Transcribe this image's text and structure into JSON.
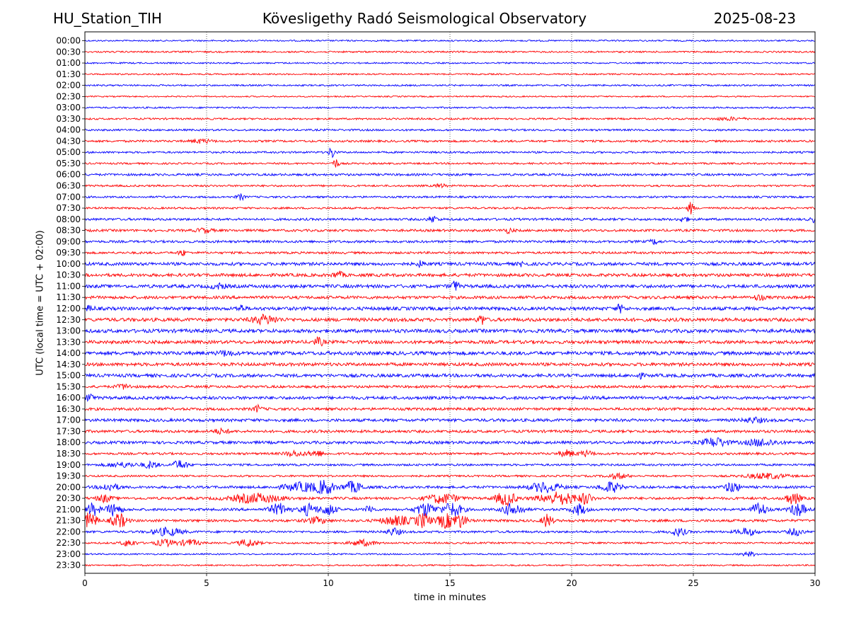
{
  "header": {
    "station": "HU_Station_TIH",
    "observatory": "Kövesligethy Radó Seismological Observatory",
    "date": "2025-08-23"
  },
  "chart_data": {
    "type": "line",
    "title": "Kövesligethy Radó Seismological Observatory",
    "xlabel": "time in minutes",
    "ylabel": "UTC (local time = UTC + 02:00)",
    "xlim": [
      0,
      30
    ],
    "x_ticks": [
      0,
      5,
      10,
      15,
      20,
      25,
      30
    ],
    "grid": "vertical dotted at x ticks",
    "colors": {
      "even_rows": "#0000ff",
      "odd_rows": "#ff0000",
      "frame": "#000000"
    },
    "rows": [
      {
        "label": "00:00",
        "noise": 0.2,
        "events": []
      },
      {
        "label": "00:30",
        "noise": 0.22,
        "events": []
      },
      {
        "label": "01:00",
        "noise": 0.2,
        "events": []
      },
      {
        "label": "01:30",
        "noise": 0.2,
        "events": []
      },
      {
        "label": "02:00",
        "noise": 0.22,
        "events": []
      },
      {
        "label": "02:30",
        "noise": 0.18,
        "events": []
      },
      {
        "label": "03:00",
        "noise": 0.22,
        "events": []
      },
      {
        "label": "03:30",
        "noise": 0.24,
        "events": [
          {
            "t": 26.5,
            "a": 0.35,
            "w": 0.6
          }
        ]
      },
      {
        "label": "04:00",
        "noise": 0.26,
        "events": []
      },
      {
        "label": "04:30",
        "noise": 0.28,
        "events": [
          {
            "t": 4.8,
            "a": 0.5,
            "w": 0.4
          }
        ]
      },
      {
        "label": "05:00",
        "noise": 0.26,
        "events": [
          {
            "t": 10.15,
            "a": 1.6,
            "w": 0.12
          }
        ]
      },
      {
        "label": "05:30",
        "noise": 0.24,
        "events": [
          {
            "t": 10.3,
            "a": 1.3,
            "w": 0.12
          }
        ]
      },
      {
        "label": "06:00",
        "noise": 0.3,
        "events": []
      },
      {
        "label": "06:30",
        "noise": 0.26,
        "events": [
          {
            "t": 14.6,
            "a": 0.5,
            "w": 0.2
          }
        ]
      },
      {
        "label": "07:00",
        "noise": 0.26,
        "events": [
          {
            "t": 6.4,
            "a": 0.8,
            "w": 0.15
          }
        ]
      },
      {
        "label": "07:30",
        "noise": 0.26,
        "events": [
          {
            "t": 24.9,
            "a": 1.6,
            "w": 0.12
          }
        ]
      },
      {
        "label": "08:00",
        "noise": 0.32,
        "events": [
          {
            "t": 14.3,
            "a": 0.8,
            "w": 0.2
          },
          {
            "t": 24.6,
            "a": 0.6,
            "w": 0.2
          },
          {
            "t": 30.0,
            "a": 0.7,
            "w": 0.2
          }
        ]
      },
      {
        "label": "08:30",
        "noise": 0.32,
        "events": [
          {
            "t": 4.9,
            "a": 0.6,
            "w": 0.3
          },
          {
            "t": 17.4,
            "a": 0.6,
            "w": 0.2
          }
        ]
      },
      {
        "label": "09:00",
        "noise": 0.32,
        "events": [
          {
            "t": 23.4,
            "a": 0.6,
            "w": 0.2
          }
        ]
      },
      {
        "label": "09:30",
        "noise": 0.3,
        "events": [
          {
            "t": 4.0,
            "a": 0.8,
            "w": 0.15
          }
        ]
      },
      {
        "label": "10:00",
        "noise": 0.42,
        "events": [
          {
            "t": 13.8,
            "a": 0.7,
            "w": 0.15
          },
          {
            "t": 18.0,
            "a": 0.6,
            "w": 0.15
          }
        ]
      },
      {
        "label": "10:30",
        "noise": 0.42,
        "events": [
          {
            "t": 10.4,
            "a": 0.9,
            "w": 0.2
          }
        ]
      },
      {
        "label": "11:00",
        "noise": 0.45,
        "events": [
          {
            "t": 15.2,
            "a": 1.4,
            "w": 0.15
          },
          {
            "t": 5.5,
            "a": 0.6,
            "w": 0.3
          }
        ]
      },
      {
        "label": "11:30",
        "noise": 0.4,
        "events": [
          {
            "t": 27.7,
            "a": 0.7,
            "w": 0.2
          }
        ]
      },
      {
        "label": "12:00",
        "noise": 0.46,
        "events": [
          {
            "t": 6.4,
            "a": 0.9,
            "w": 0.15
          },
          {
            "t": 22.0,
            "a": 1.0,
            "w": 0.15
          },
          {
            "t": 0.2,
            "a": 0.6,
            "w": 0.2
          }
        ]
      },
      {
        "label": "12:30",
        "noise": 0.46,
        "events": [
          {
            "t": 7.4,
            "a": 1.1,
            "w": 0.5
          },
          {
            "t": 16.3,
            "a": 1.3,
            "w": 0.15
          }
        ]
      },
      {
        "label": "13:00",
        "noise": 0.48,
        "events": []
      },
      {
        "label": "13:30",
        "noise": 0.44,
        "events": [
          {
            "t": 9.6,
            "a": 1.0,
            "w": 0.2
          }
        ]
      },
      {
        "label": "14:00",
        "noise": 0.48,
        "events": [
          {
            "t": 5.8,
            "a": 0.6,
            "w": 0.3
          }
        ]
      },
      {
        "label": "14:30",
        "noise": 0.44,
        "events": []
      },
      {
        "label": "15:00",
        "noise": 0.44,
        "events": [
          {
            "t": 22.8,
            "a": 0.6,
            "w": 0.15
          }
        ]
      },
      {
        "label": "15:30",
        "noise": 0.34,
        "events": [
          {
            "t": 1.6,
            "a": 0.6,
            "w": 0.3
          }
        ]
      },
      {
        "label": "16:00",
        "noise": 0.42,
        "events": [
          {
            "t": 0.2,
            "a": 1.3,
            "w": 0.12
          }
        ]
      },
      {
        "label": "16:30",
        "noise": 0.36,
        "events": [
          {
            "t": 7.1,
            "a": 0.9,
            "w": 0.15
          }
        ]
      },
      {
        "label": "17:00",
        "noise": 0.4,
        "events": [
          {
            "t": 27.5,
            "a": 0.6,
            "w": 0.4
          }
        ]
      },
      {
        "label": "17:30",
        "noise": 0.36,
        "events": [
          {
            "t": 5.6,
            "a": 0.6,
            "w": 0.3
          }
        ]
      },
      {
        "label": "18:00",
        "noise": 0.38,
        "events": [
          {
            "t": 25.9,
            "a": 1.2,
            "w": 0.5
          },
          {
            "t": 27.8,
            "a": 0.9,
            "w": 0.6
          }
        ]
      },
      {
        "label": "18:30",
        "noise": 0.3,
        "events": [
          {
            "t": 8.6,
            "a": 0.7,
            "w": 0.4
          },
          {
            "t": 9.5,
            "a": 0.8,
            "w": 0.3
          },
          {
            "t": 19.8,
            "a": 0.9,
            "w": 0.3
          },
          {
            "t": 20.6,
            "a": 0.7,
            "w": 0.3
          }
        ]
      },
      {
        "label": "19:00",
        "noise": 0.28,
        "events": [
          {
            "t": 1.5,
            "a": 0.6,
            "w": 0.6
          },
          {
            "t": 2.7,
            "a": 0.9,
            "w": 0.3
          },
          {
            "t": 3.9,
            "a": 1.2,
            "w": 0.3
          }
        ]
      },
      {
        "label": "19:30",
        "noise": 0.26,
        "events": [
          {
            "t": 21.9,
            "a": 0.7,
            "w": 0.4
          },
          {
            "t": 28.0,
            "a": 0.7,
            "w": 0.8
          }
        ]
      },
      {
        "label": "20:00",
        "noise": 0.34,
        "events": [
          {
            "t": 1.0,
            "a": 0.9,
            "w": 0.4
          },
          {
            "t": 9.0,
            "a": 1.2,
            "w": 0.8
          },
          {
            "t": 9.9,
            "a": 1.7,
            "w": 0.3
          },
          {
            "t": 11.0,
            "a": 1.4,
            "w": 0.4
          },
          {
            "t": 18.9,
            "a": 1.3,
            "w": 0.6
          },
          {
            "t": 21.6,
            "a": 1.4,
            "w": 0.4
          },
          {
            "t": 26.6,
            "a": 1.4,
            "w": 0.3
          }
        ]
      },
      {
        "label": "20:30",
        "noise": 0.34,
        "events": [
          {
            "t": 0.8,
            "a": 0.9,
            "w": 0.3
          },
          {
            "t": 7.0,
            "a": 1.2,
            "w": 1.0
          },
          {
            "t": 14.7,
            "a": 1.3,
            "w": 0.6
          },
          {
            "t": 17.3,
            "a": 1.8,
            "w": 0.4
          },
          {
            "t": 19.5,
            "a": 1.6,
            "w": 0.8
          },
          {
            "t": 20.6,
            "a": 1.4,
            "w": 0.2
          },
          {
            "t": 29.1,
            "a": 1.5,
            "w": 0.3
          }
        ]
      },
      {
        "label": "21:00",
        "noise": 0.34,
        "events": [
          {
            "t": 0.3,
            "a": 1.6,
            "w": 0.3
          },
          {
            "t": 1.2,
            "a": 1.6,
            "w": 0.3
          },
          {
            "t": 8.0,
            "a": 1.5,
            "w": 0.4
          },
          {
            "t": 9.2,
            "a": 1.5,
            "w": 0.3
          },
          {
            "t": 10.0,
            "a": 1.5,
            "w": 0.3
          },
          {
            "t": 11.7,
            "a": 1.3,
            "w": 0.15
          },
          {
            "t": 14.0,
            "a": 1.7,
            "w": 0.4
          },
          {
            "t": 15.1,
            "a": 1.8,
            "w": 0.4
          },
          {
            "t": 17.6,
            "a": 1.6,
            "w": 0.4
          },
          {
            "t": 20.3,
            "a": 1.4,
            "w": 0.3
          },
          {
            "t": 27.7,
            "a": 1.8,
            "w": 0.3
          },
          {
            "t": 29.3,
            "a": 1.8,
            "w": 0.3
          }
        ]
      },
      {
        "label": "21:30",
        "noise": 0.34,
        "events": [
          {
            "t": 0.2,
            "a": 2.0,
            "w": 0.3
          },
          {
            "t": 1.4,
            "a": 1.9,
            "w": 0.3
          },
          {
            "t": 9.5,
            "a": 0.8,
            "w": 0.4
          },
          {
            "t": 12.8,
            "a": 1.2,
            "w": 0.6
          },
          {
            "t": 13.9,
            "a": 1.9,
            "w": 0.3
          },
          {
            "t": 14.8,
            "a": 1.9,
            "w": 0.3
          },
          {
            "t": 15.4,
            "a": 1.8,
            "w": 0.3
          },
          {
            "t": 19.0,
            "a": 1.8,
            "w": 0.2
          }
        ]
      },
      {
        "label": "22:00",
        "noise": 0.3,
        "events": [
          {
            "t": 3.4,
            "a": 1.0,
            "w": 0.6
          },
          {
            "t": 12.7,
            "a": 0.9,
            "w": 0.3
          },
          {
            "t": 24.4,
            "a": 1.0,
            "w": 0.3
          },
          {
            "t": 27.2,
            "a": 0.9,
            "w": 0.4
          },
          {
            "t": 29.2,
            "a": 0.9,
            "w": 0.3
          }
        ]
      },
      {
        "label": "22:30",
        "noise": 0.24,
        "events": [
          {
            "t": 1.8,
            "a": 0.9,
            "w": 0.3
          },
          {
            "t": 3.3,
            "a": 0.9,
            "w": 0.4
          },
          {
            "t": 4.3,
            "a": 0.9,
            "w": 0.4
          },
          {
            "t": 6.7,
            "a": 1.0,
            "w": 0.4
          },
          {
            "t": 11.4,
            "a": 0.8,
            "w": 0.5
          }
        ]
      },
      {
        "label": "23:00",
        "noise": 0.2,
        "events": [
          {
            "t": 27.3,
            "a": 0.6,
            "w": 0.3
          }
        ]
      },
      {
        "label": "23:30",
        "noise": 0.2,
        "events": []
      }
    ]
  }
}
